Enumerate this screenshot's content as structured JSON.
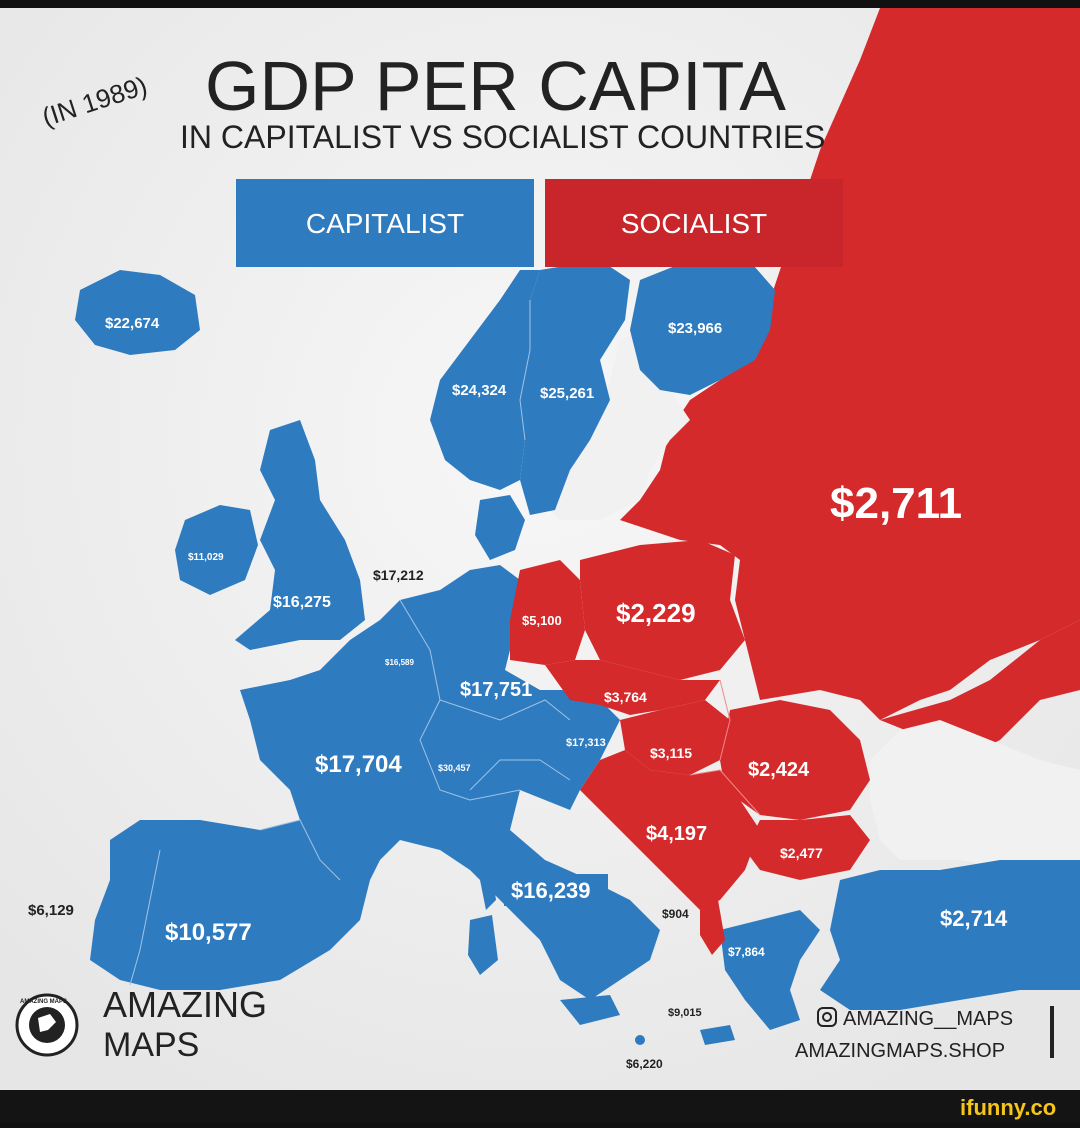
{
  "header": {
    "year_note": "(IN 1989)",
    "title": "GDP PER CAPITA",
    "subtitle": "IN CAPITALIST VS SOCIALIST COUNTRIES"
  },
  "legend": {
    "capitalist": {
      "label": "CAPITALIST",
      "color": "#2f7bbf"
    },
    "socialist": {
      "label": "SOCIALIST",
      "color": "#d42a2c"
    }
  },
  "colors": {
    "sea": "#f1f1f1",
    "capitalist": "#2f7bbf",
    "socialist": "#d42a2c",
    "border": "#9fc3e6"
  },
  "values": {
    "iceland": "$22,674",
    "finland": "$23,966",
    "norway": "$24,324",
    "sweden": "$25,261",
    "ussr": "$2,711",
    "ireland": "$11,029",
    "uk": "$16,275",
    "netherlands": "$17,212",
    "belgium": "$16,589",
    "east_germany": "$5,100",
    "poland": "$2,229",
    "west_germany": "$17,751",
    "czechoslovakia": "$3,764",
    "austria": "$17,313",
    "hungary": "$3,115",
    "romania": "$2,424",
    "france": "$17,704",
    "switzerland": "$30,457",
    "yugoslavia": "$4,197",
    "bulgaria": "$2,477",
    "italy": "$16,239",
    "portugal": "$6,129",
    "spain": "$10,577",
    "albania": "$904",
    "turkey": "$2,714",
    "greece": "$7,864",
    "cyprus": "$9,015",
    "malta": "$6,220"
  },
  "branding": {
    "logo_line1": "AMAZING",
    "logo_line2": "MAPS",
    "logo_seal_text": "AMAZING MAPS",
    "instagram": "AMAZING__MAPS",
    "shop": "AMAZINGMAPS.SHOP",
    "watermark": "ifunny.co"
  }
}
